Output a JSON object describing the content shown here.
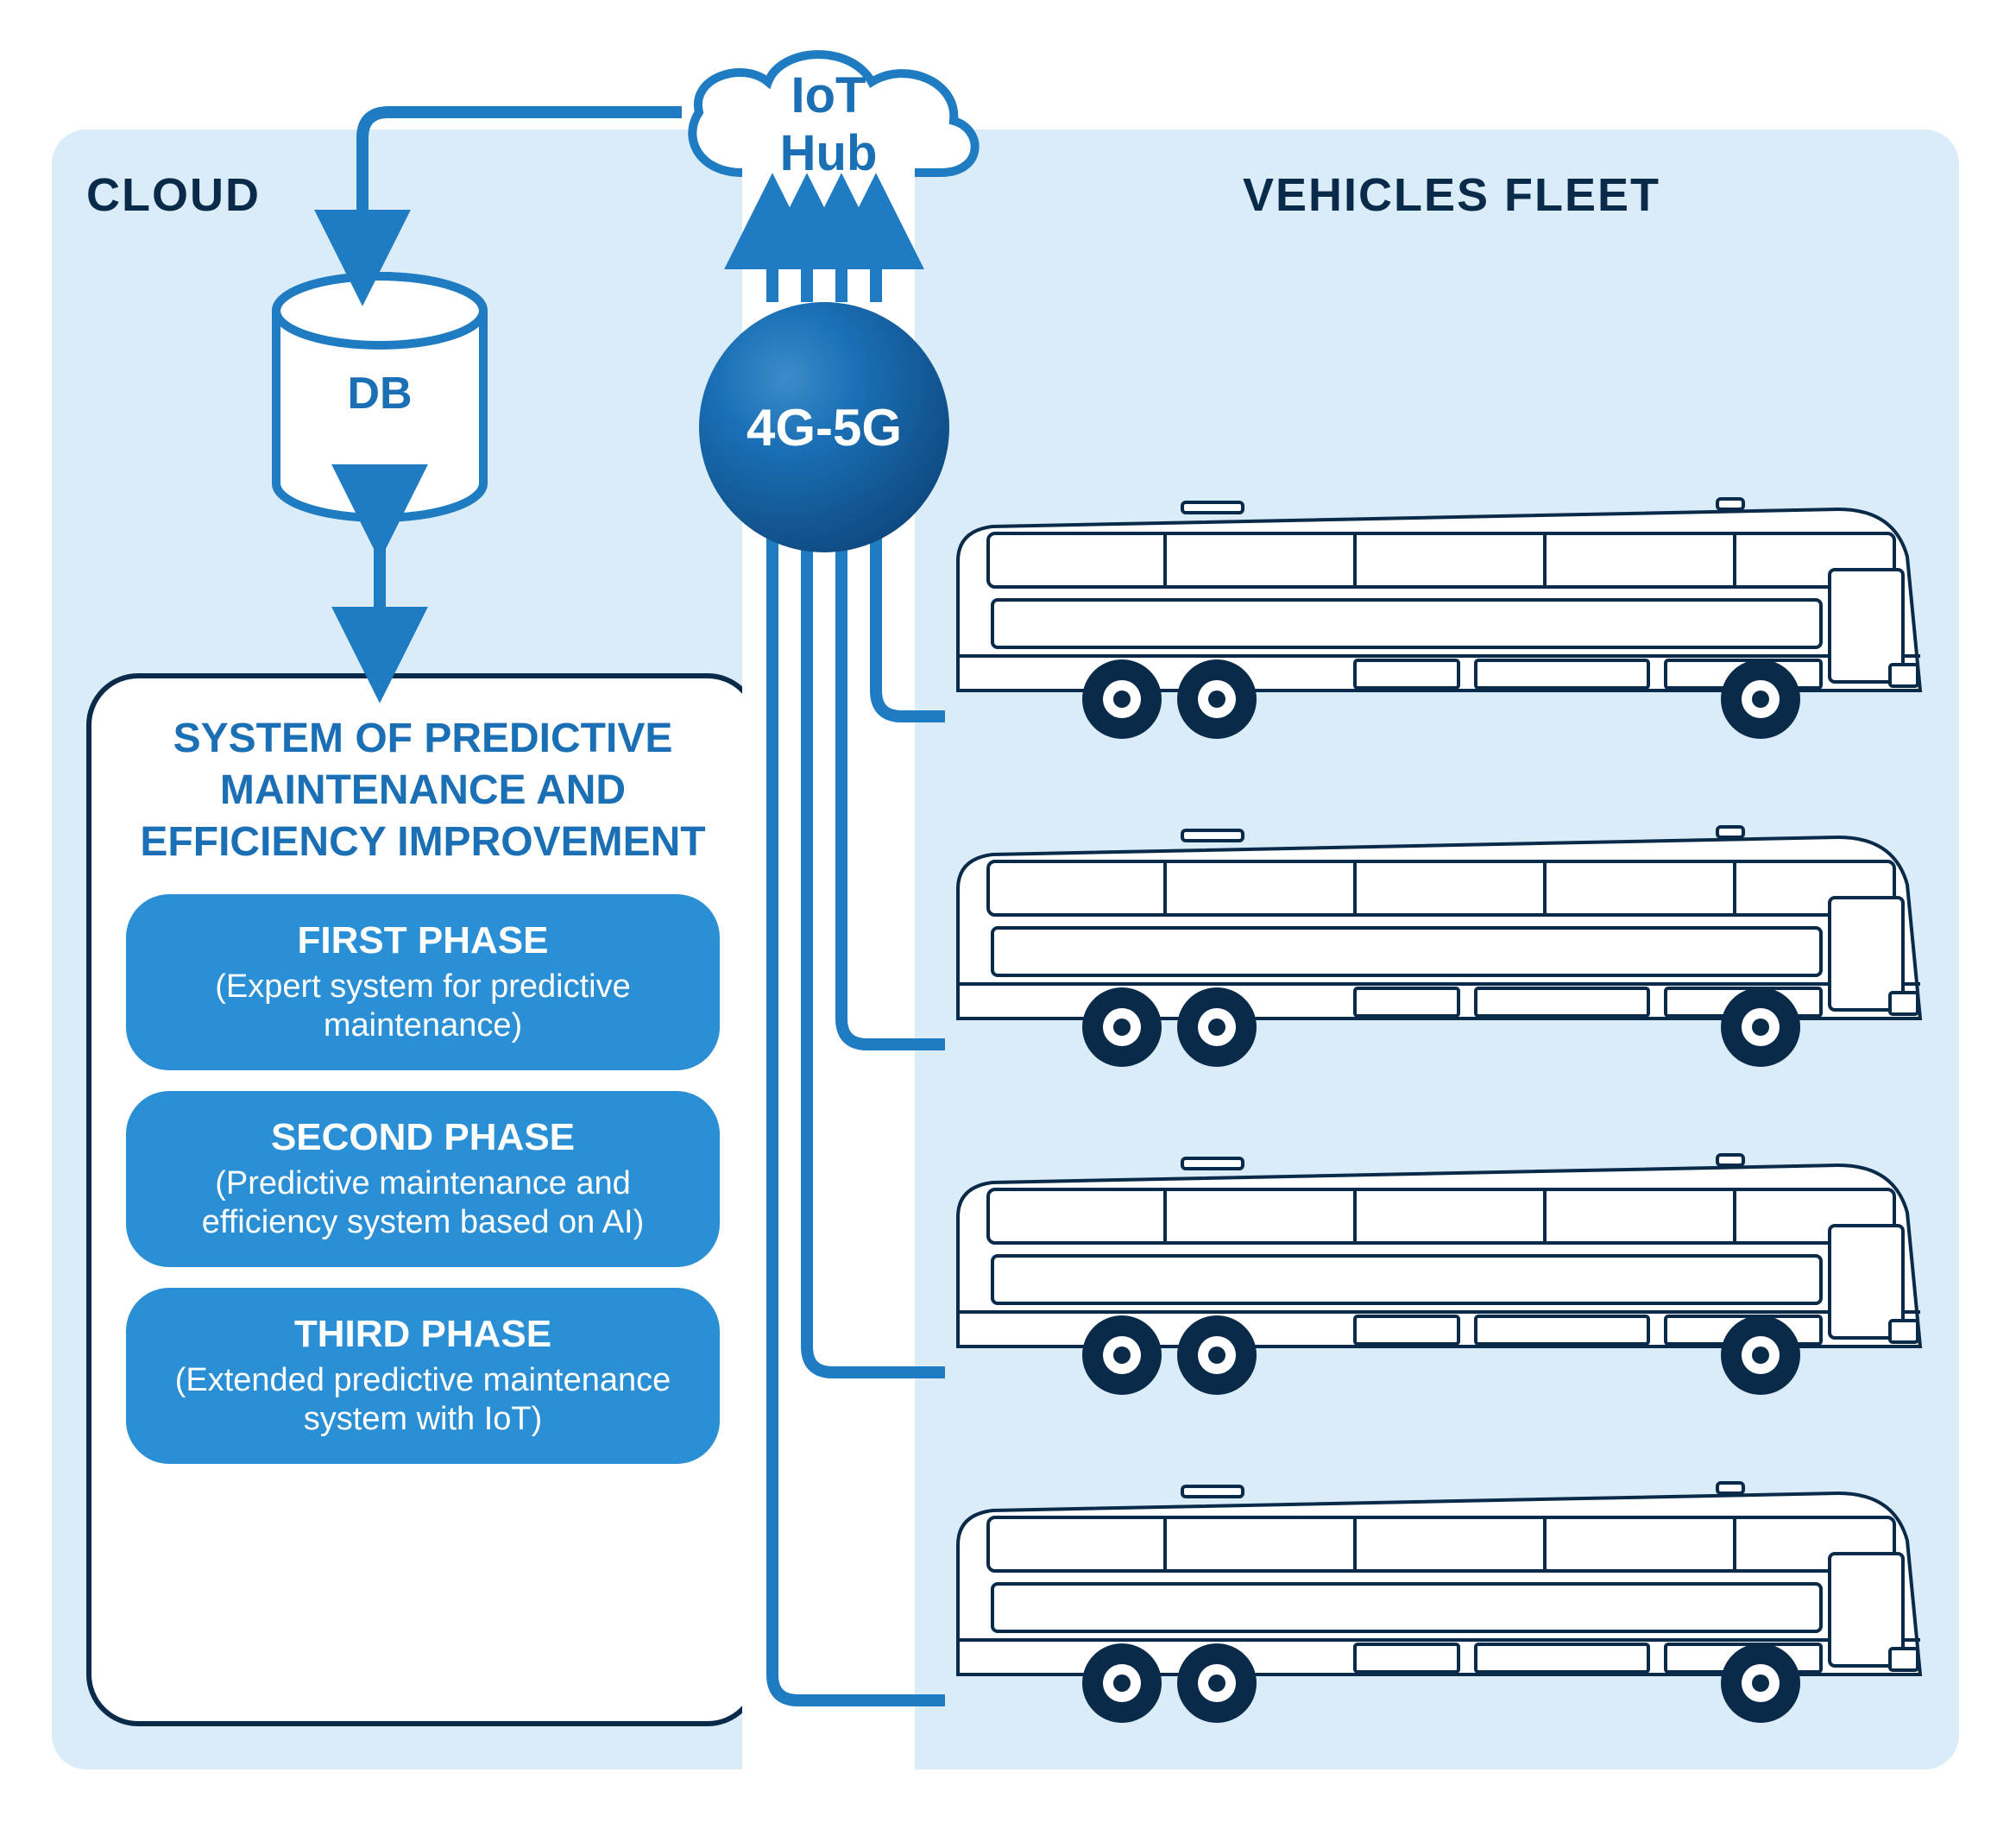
{
  "diagram": {
    "type": "flowchart",
    "background_color": "#ffffff",
    "panel_color": "#d9ecf8",
    "panel_radius": 40,
    "sections": {
      "cloud": {
        "title": "CLOUD"
      },
      "fleet": {
        "title": "VEHICLES FLEET"
      }
    },
    "iot_hub": {
      "label": "IoT Hub",
      "text_color": "#1a6fb5",
      "cloud_stroke": "#1f7bc2",
      "cloud_fill": "#ffffff"
    },
    "db": {
      "label": "DB",
      "stroke": "#1f7bc2",
      "fill": "#ffffff",
      "text_color": "#1a6fb5"
    },
    "network": {
      "label": "4G-5G",
      "gradient_start": "#3b8cc9",
      "gradient_mid": "#1a6fb5",
      "gradient_end": "#0a3a6a",
      "text_color": "#ffffff"
    },
    "system_box": {
      "title": "SYSTEM OF PREDICTIVE MAINTENANCE AND EFFICIENCY IMPROVEMENT",
      "border_color": "#0a2a4a",
      "bg_color": "#ffffff",
      "title_color": "#1a6fb5",
      "phases": [
        {
          "title": "FIRST PHASE",
          "sub": "(Expert system for predictive maintenance)"
        },
        {
          "title": "SECOND PHASE",
          "sub": "(Predictive maintenance and efficiency system based on AI)"
        },
        {
          "title": "THIRD PHASE",
          "sub": "(Extended predictive maintenance system with IoT)"
        }
      ],
      "pill_color": "#2a8fd4",
      "pill_text_color": "#ffffff"
    },
    "connectors": {
      "stroke": "#1f7bc2",
      "stroke_width": 14
    },
    "bus": {
      "count": 4,
      "stroke": "#0a2a4a",
      "fill": "#ffffff",
      "wheel_fill": "#0a2a4a"
    },
    "title_style": {
      "color": "#0a2a4a",
      "font_size_pt": 40,
      "font_weight": 900,
      "letter_spacing": 2
    }
  }
}
